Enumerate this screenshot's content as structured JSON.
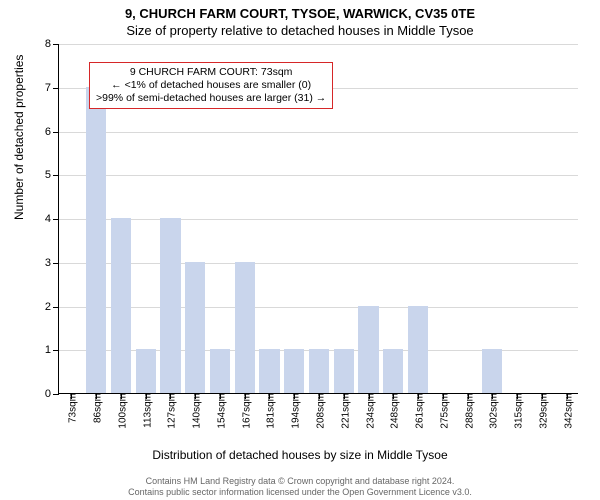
{
  "title": "9, CHURCH FARM COURT, TYSOE, WARWICK, CV35 0TE",
  "subtitle": "Size of property relative to detached houses in Middle Tysoe",
  "ylabel": "Number of detached properties",
  "xlabel": "Distribution of detached houses by size in Middle Tysoe",
  "chart": {
    "type": "bar",
    "ylim": [
      0,
      8
    ],
    "yticks": [
      0,
      1,
      2,
      3,
      4,
      5,
      6,
      7,
      8
    ],
    "categories": [
      "73sqm",
      "86sqm",
      "100sqm",
      "113sqm",
      "127sqm",
      "140sqm",
      "154sqm",
      "167sqm",
      "181sqm",
      "194sqm",
      "208sqm",
      "221sqm",
      "234sqm",
      "248sqm",
      "261sqm",
      "275sqm",
      "288sqm",
      "302sqm",
      "315sqm",
      "329sqm",
      "342sqm"
    ],
    "values": [
      0,
      7,
      4,
      1,
      4,
      3,
      1,
      3,
      1,
      1,
      1,
      1,
      2,
      1,
      2,
      0,
      0,
      1,
      0,
      0,
      0
    ],
    "bar_color": "#c9d5ec",
    "bar_width_ratio": 0.82,
    "grid_color": "#d9d9d9",
    "axis_color": "#000000",
    "tick_fontsize": 11,
    "xlabel_fontsize": 10
  },
  "annotation": {
    "lines": [
      "9 CHURCH FARM COURT: 73sqm",
      "← <1% of detached houses are smaller (0)",
      ">99% of semi-detached houses are larger (31) →"
    ],
    "border_color": "#d62728"
  },
  "footer": {
    "line1": "Contains HM Land Registry data © Crown copyright and database right 2024.",
    "line2": "Contains public sector information licensed under the Open Government Licence v3.0."
  }
}
